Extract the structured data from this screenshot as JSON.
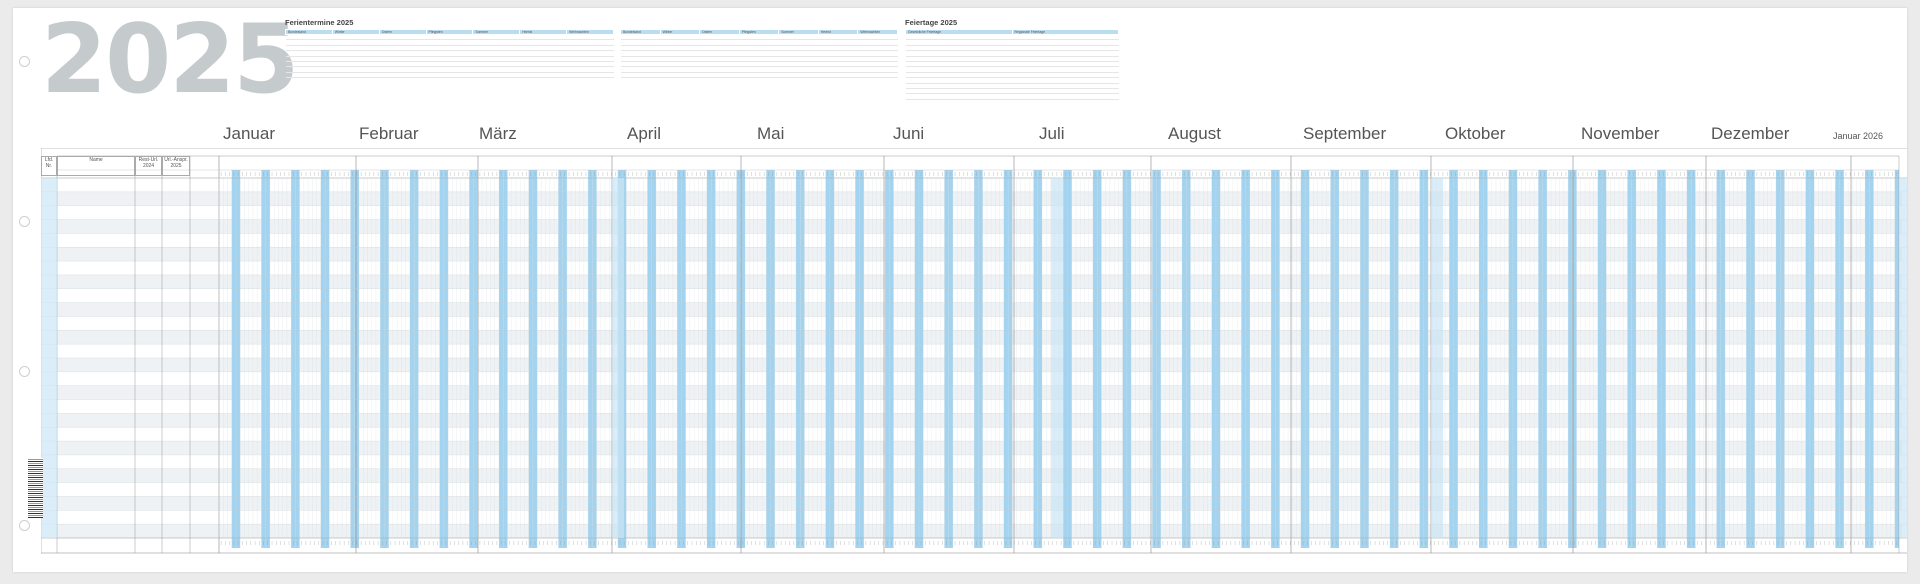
{
  "year": "2025",
  "school_holidays": {
    "title": "Ferientermine 2025",
    "cols_left": [
      "Bundesland",
      "Winter",
      "Ostern",
      "Pfingsten",
      "Sommer",
      "Herbst",
      "Weihnachten"
    ],
    "cols_right": [
      "Bundesland",
      "Winter",
      "Ostern",
      "Pfingsten",
      "Sommer",
      "Herbst",
      "Weihnachten"
    ]
  },
  "public_holidays": {
    "title": "Feiertage 2025",
    "cols": [
      "Gesetzliche Feiertage",
      "Regionale Feiertage"
    ]
  },
  "months": [
    {
      "name": "Januar"
    },
    {
      "name": "Februar"
    },
    {
      "name": "März"
    },
    {
      "name": "April"
    },
    {
      "name": "Mai"
    },
    {
      "name": "Juni"
    },
    {
      "name": "Juli"
    },
    {
      "name": "August"
    },
    {
      "name": "September"
    },
    {
      "name": "Oktober"
    },
    {
      "name": "November"
    },
    {
      "name": "Dezember"
    }
  ],
  "next_month": "Januar 2026",
  "columns": {
    "nr": "Lfd. Nr.",
    "name": "Name",
    "rest": "Rest-Url. 2024",
    "claim": "Url.-Anspr. 2025"
  },
  "row_count": 26
}
